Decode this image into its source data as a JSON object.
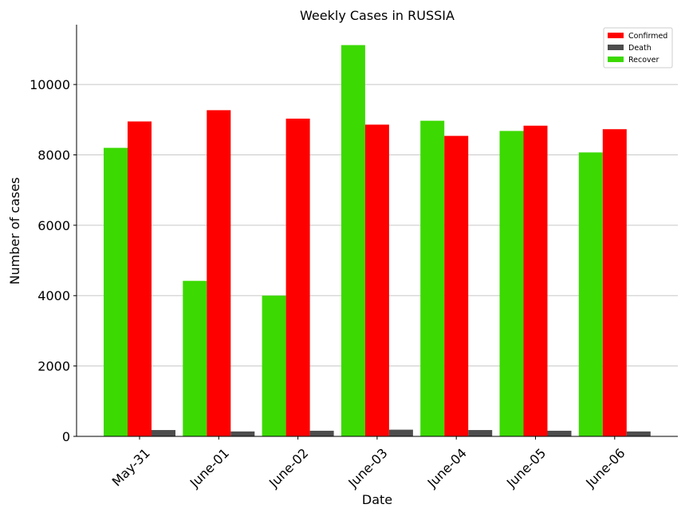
{
  "chart_data": {
    "type": "bar",
    "title": "Weekly Cases in RUSSIA",
    "xlabel": "Date",
    "ylabel": "Number of cases",
    "categories": [
      "May-31",
      "June-01",
      "June-02",
      "June-03",
      "June-04",
      "June-05",
      "June-06"
    ],
    "series": [
      {
        "name": "Recover",
        "color": "#3cd902",
        "values": [
          8200,
          4420,
          4000,
          11120,
          8970,
          8680,
          8070
        ]
      },
      {
        "name": "Confirmed",
        "color": "#ff0000",
        "values": [
          8950,
          9270,
          9030,
          8860,
          8540,
          8830,
          8730
        ]
      },
      {
        "name": "Death",
        "color": "#4d4d4d",
        "values": [
          180,
          140,
          160,
          190,
          180,
          160,
          140
        ]
      }
    ],
    "legend_order": [
      "Confirmed",
      "Death",
      "Recover"
    ],
    "legend_position": "top-right",
    "ylim": [
      0,
      11700
    ],
    "yticks": [
      "0",
      "2000",
      "4000",
      "6000",
      "8000",
      "10000"
    ],
    "grid": "horizontal"
  }
}
